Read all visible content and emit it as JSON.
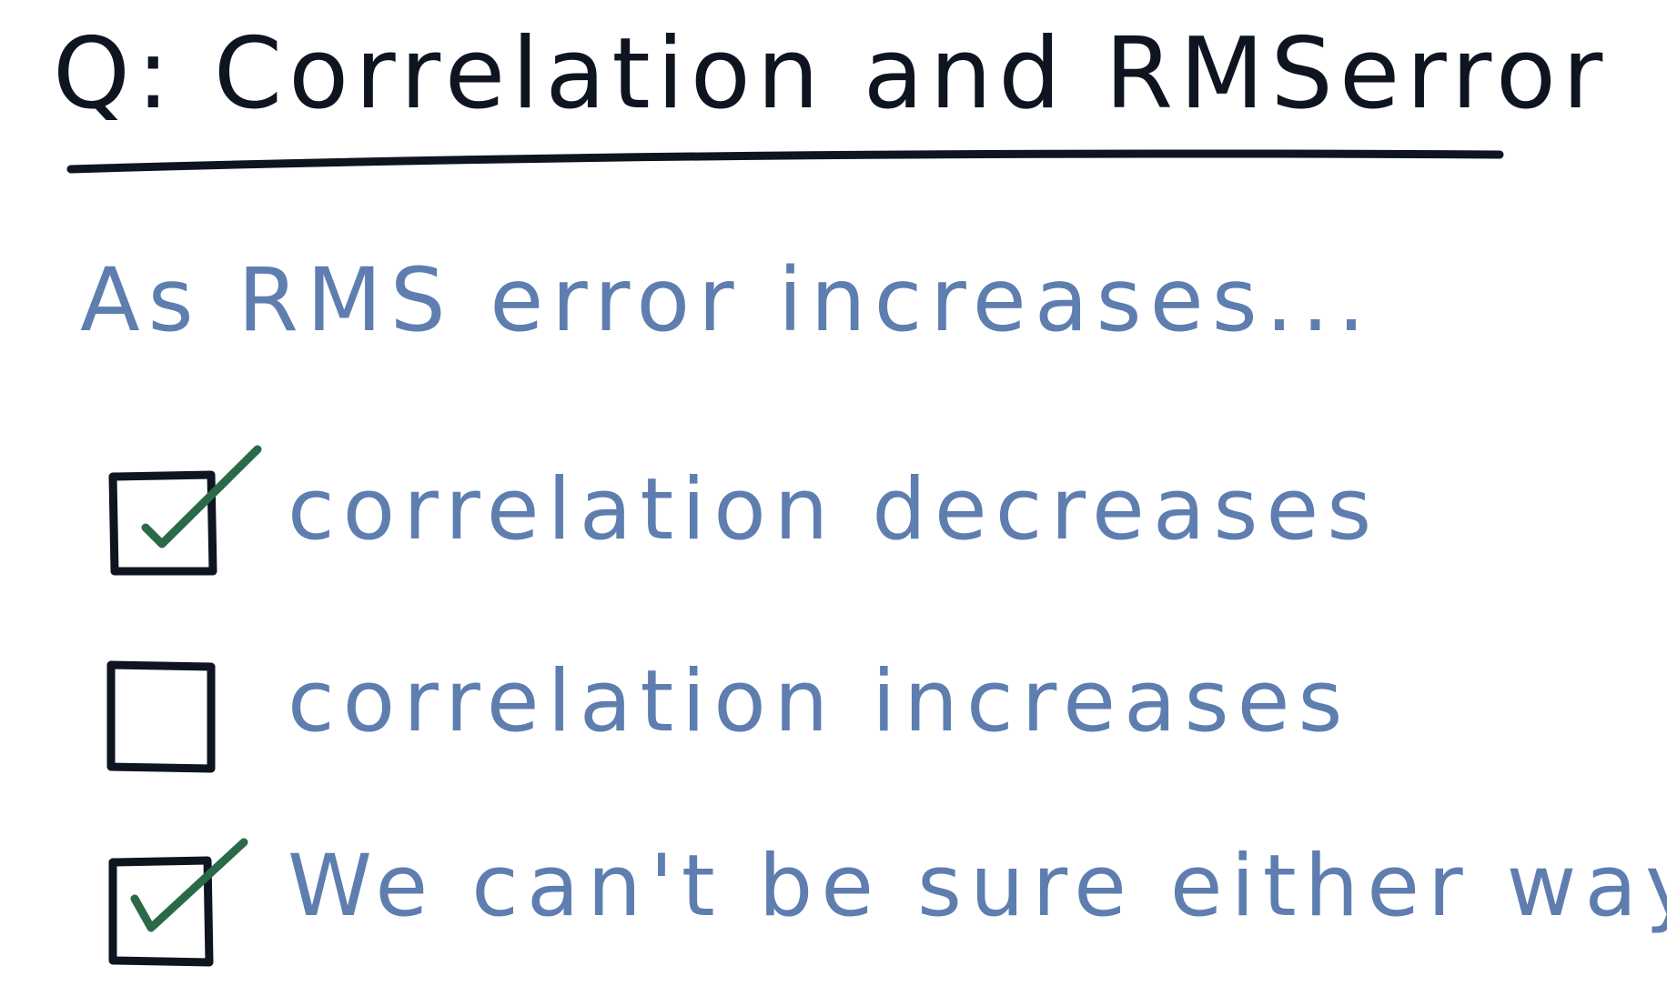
{
  "colors": {
    "ink_dark": "#0e1521",
    "ink_blue": "#5e7eb0",
    "check_green": "#2a6a48"
  },
  "title": "Q: Correlation and RMSerror",
  "prompt": "As RMS error increases...",
  "options": [
    {
      "label": "correlation decreases",
      "checked": true
    },
    {
      "label": "correlation increases",
      "checked": false
    },
    {
      "label": "We can't be sure either way",
      "checked": true
    }
  ]
}
